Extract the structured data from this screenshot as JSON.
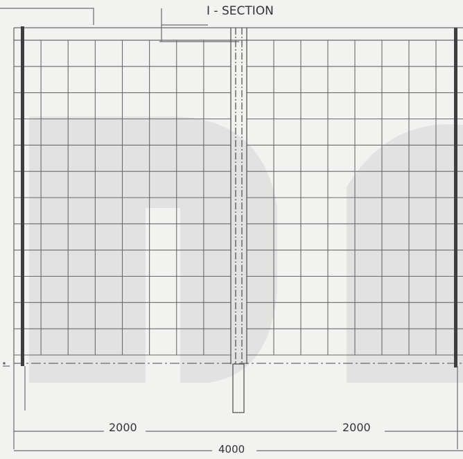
{
  "labels": {
    "section_title": "I - SECTION",
    "dim_left": "2000",
    "dim_right": "2000",
    "dim_total": "4000"
  },
  "colors": {
    "background": "#f2f2f0",
    "grid": "#6a6a6a",
    "post": "#3e3e3e",
    "watermark": "#dcdcdc"
  }
}
